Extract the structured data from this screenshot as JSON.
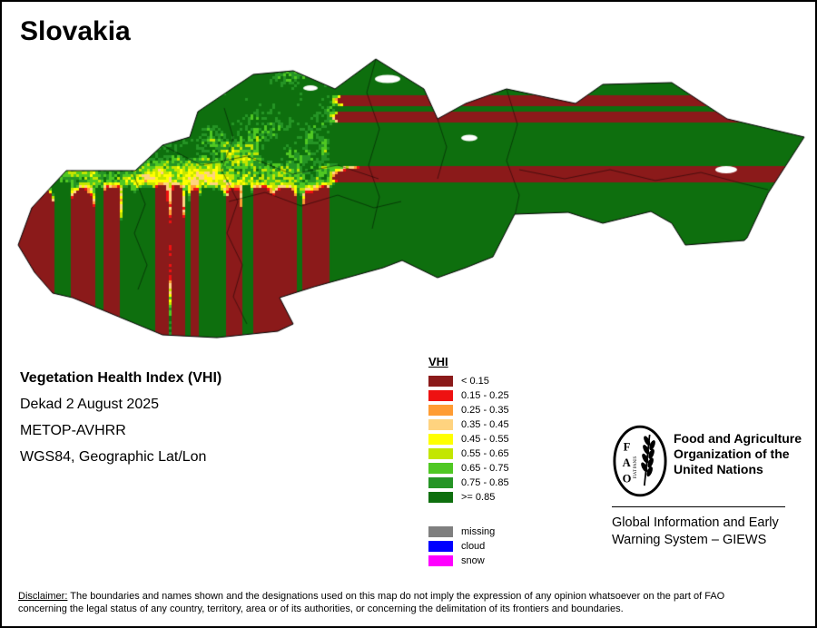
{
  "page": {
    "title": "Slovakia"
  },
  "map": {
    "region": "Slovakia",
    "outline_color": "#000000",
    "background": "#ffffff"
  },
  "info": {
    "index_name": "Vegetation Health Index (VHI)",
    "dekad": "Dekad 2 August 2025",
    "sensor": "METOP-AVHRR",
    "projection": "WGS84, Geographic Lat/Lon"
  },
  "legend": {
    "title": "VHI",
    "classes": [
      {
        "label": "< 0.15",
        "color": "#8b1a1a"
      },
      {
        "label": "0.15 - 0.25",
        "color": "#ee1111"
      },
      {
        "label": "0.25 - 0.35",
        "color": "#ff9c33"
      },
      {
        "label": "0.35 - 0.45",
        "color": "#ffd37f"
      },
      {
        "label": "0.45 - 0.55",
        "color": "#ffff00"
      },
      {
        "label": "0.55 - 0.65",
        "color": "#c3e600"
      },
      {
        "label": "0.65 - 0.75",
        "color": "#4fc822"
      },
      {
        "label": "0.75 - 0.85",
        "color": "#259425"
      },
      {
        "label": ">= 0.85",
        "color": "#0e6f0e"
      }
    ],
    "extras": [
      {
        "label": "missing",
        "color": "#7f7f7f"
      },
      {
        "label": "cloud",
        "color": "#0000ff"
      },
      {
        "label": "snow",
        "color": "#ff00ff"
      }
    ]
  },
  "branding": {
    "fao_acronym_letters": [
      "F",
      "A",
      "O"
    ],
    "fao_motto": "FIAT PANIS",
    "org_lines": [
      "Food and Agriculture",
      "Organization of the",
      "United Nations"
    ],
    "giews_lines": [
      "Global Information and Early",
      "Warning System – GIEWS"
    ]
  },
  "disclaimer": {
    "label": "Disclaimer:",
    "line1": " The boundaries and names shown and the designations used on this map do not imply the expression of any opinion whatsoever on the part of FAO",
    "line2": "concerning the legal status of any country, territory, area or of its authorities, or concerning the delimitation of its frontiers and boundaries."
  }
}
